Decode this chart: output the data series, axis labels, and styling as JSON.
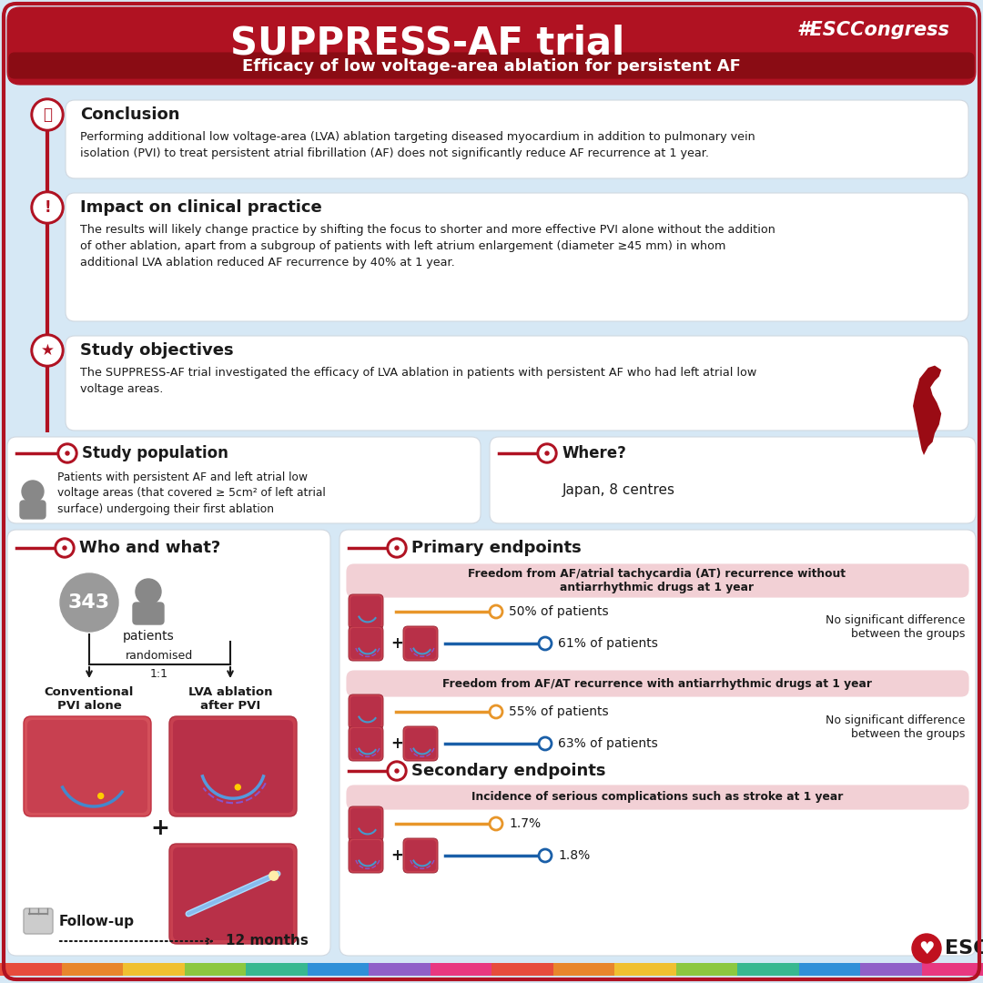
{
  "title_main": "SUPPRESS-AF trial",
  "title_hashtag": "#ESCCongress",
  "title_sub": "Efficacy of low voltage-area ablation for persistent AF",
  "bg_color": "#d6e8f5",
  "header_dark_red": "#9a0b14",
  "header_mid_red": "#b01222",
  "red_color": "#b01222",
  "card_bg": "#ffffff",
  "card_edge": "#d0d8e0",
  "section1_title": "Conclusion",
  "section1_text": "Performing additional low voltage-area (LVA) ablation targeting diseased myocardium in addition to pulmonary vein\nisolation (PVI) to treat persistent atrial fibrillation (AF) does not significantly reduce AF recurrence at 1 year.",
  "section2_title": "Impact on clinical practice",
  "section2_text": "The results will likely change practice by shifting the focus to shorter and more effective PVI alone without the addition\nof other ablation, apart from a subgroup of patients with left atrium enlargement (diameter ≥45 mm) in whom\nadditional LVA ablation reduced AF recurrence by 40% at 1 year.",
  "section3_title": "Study objectives",
  "section3_text": "The SUPPRESS-AF trial investigated the efficacy of LVA ablation in patients with persistent AF who had left atrial low\nvoltage areas.",
  "pop_title": "Study population",
  "pop_text": "Patients with persistent AF and left atrial low\nvoltage areas (that covered ≥ 5cm² of left atrial\nsurface) undergoing their first ablation",
  "where_title": "Where?",
  "where_text": "Japan, 8 centres",
  "who_title": "Who and what?",
  "n_patients": "343",
  "patients_label": "patients",
  "arm1_label": "Conventional\nPVI alone",
  "arm2_label": "LVA ablation\nafter PVI",
  "randomised_label": "randomised",
  "ratio_label": "1:1",
  "followup_label": "Follow-up",
  "followup_duration": "12 months",
  "primary_title": "Primary endpoints",
  "primary1_label": "Freedom from AF/atrial tachycardia (AT) recurrence without\nantiarrhythmic drugs at 1 year",
  "primary1_val1": "50% of patients",
  "primary1_val2": "61% of patients",
  "primary1_note": "No significant difference\nbetween the groups",
  "primary2_label": "Freedom from AF/AT recurrence with antiarrhythmic drugs at 1 year",
  "primary2_val1": "55% of patients",
  "primary2_val2": "63% of patients",
  "primary2_note": "No significant difference\nbetween the groups",
  "secondary_title": "Secondary endpoints",
  "secondary1_label": "Incidence of serious complications such as stroke at 1 year",
  "secondary1_val1": "1.7%",
  "secondary1_val2": "1.8%",
  "orange_color": "#e8962a",
  "blue_color": "#1a5fa8",
  "light_red_bar": "#f2d0d5",
  "dark": "#1a1a1a",
  "gray": "#888888",
  "esc_red": "#c0111f"
}
